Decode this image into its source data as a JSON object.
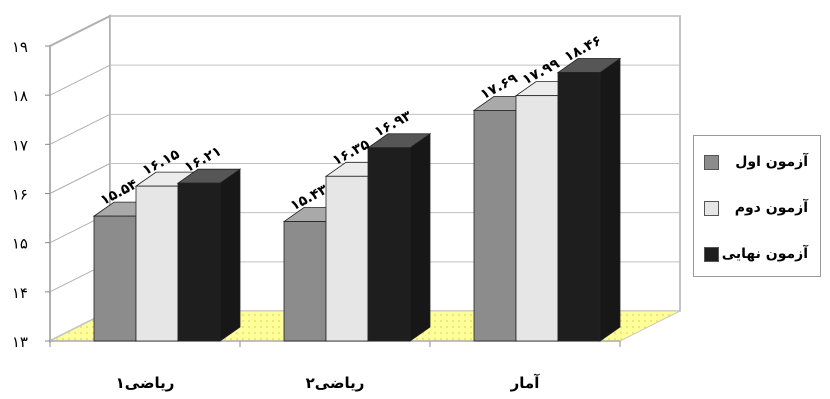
{
  "chart_data": {
    "type": "bar",
    "categories": [
      "ریاضی۱",
      "ریاضی۲",
      "آمار"
    ],
    "series": [
      {
        "name": "آزمون اول",
        "values": [
          15.54,
          15.43,
          17.69
        ],
        "labels": [
          "۱۵.۵۴",
          "۱۵.۴۳",
          "۱۷.۶۹"
        ],
        "color": "#8c8c8c"
      },
      {
        "name": "آزمون دوم",
        "values": [
          16.15,
          16.35,
          17.99
        ],
        "labels": [
          "۱۶.۱۵",
          "۱۶.۳۵",
          "۱۷.۹۹"
        ],
        "color": "#e6e6e6"
      },
      {
        "name": "آزمون نهایی",
        "values": [
          16.21,
          16.93,
          18.46
        ],
        "labels": [
          "۱۶.۲۱",
          "۱۶.۹۳",
          "۱۸.۴۶"
        ],
        "color": "#1e1e1e"
      }
    ],
    "y_ticks": [
      "۱۳",
      "۱۴",
      "۱۵",
      "۱۶",
      "۱۷",
      "۱۸",
      "۱۹"
    ],
    "ylim": [
      13,
      19
    ],
    "grid": true,
    "legend_position": "right",
    "floor_color": "#ffff99"
  }
}
